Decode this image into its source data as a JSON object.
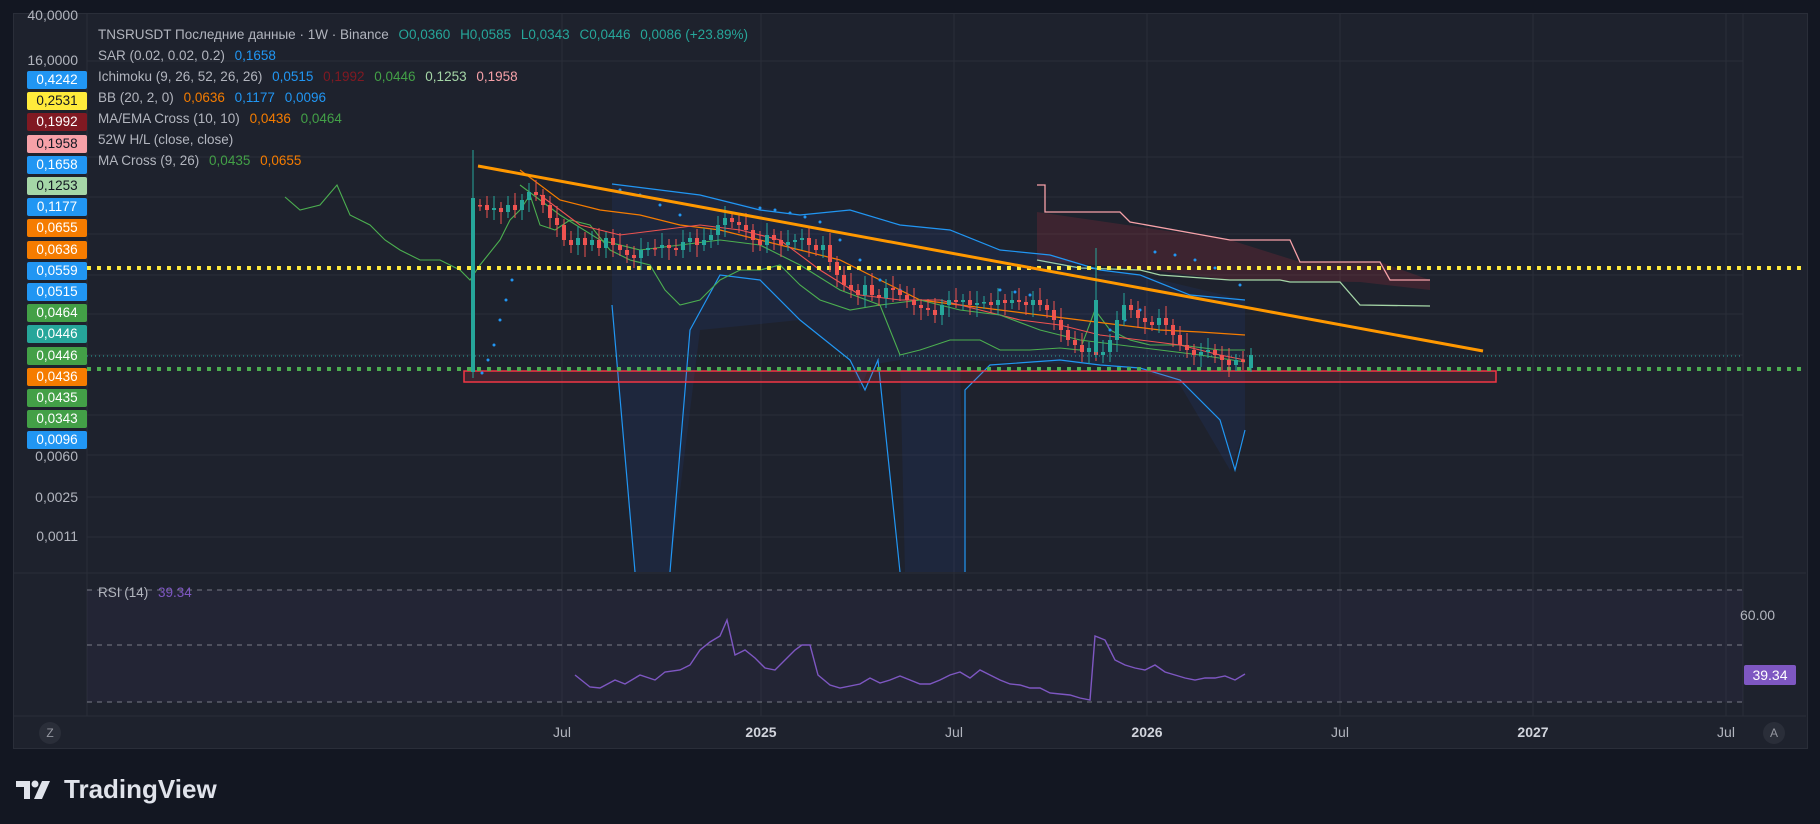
{
  "legend": {
    "main": {
      "symbol": "TNSRUSDT Последние данные · 1W · Binance",
      "o": "O0,0360",
      "h": "H0,0585",
      "l": "L0,0343",
      "c": "C0,0446",
      "chg": "0,0086 (+23.89%)"
    },
    "sar": {
      "name": "SAR (0.02, 0.02, 0.2)",
      "v1": "0,1658"
    },
    "ichimoku": {
      "name": "Ichimoku (9, 26, 52, 26, 26)",
      "v1": "0,0515",
      "v2": "0,1992",
      "v3": "0,0446",
      "v4": "0,1253",
      "v5": "0,1958"
    },
    "bb": {
      "name": "BB (20, 2, 0)",
      "v1": "0,0636",
      "v2": "0,1177",
      "v3": "0,0096"
    },
    "ma_ema": {
      "name": "MA/EMA Cross (10, 10)",
      "v1": "0,0436",
      "v2": "0,0464"
    },
    "hl52": {
      "name": "52W H/L (close, close)"
    },
    "ma_cross": {
      "name": "MA Cross (9, 26)",
      "v1": "0,0435",
      "v2": "0,0655"
    }
  },
  "price_axis": [
    "40,0000",
    "16,0000",
    "0,0060",
    "0,0025",
    "0,0011"
  ],
  "price_tags": [
    {
      "value": "0,4242",
      "color": "#2196f3",
      "text_color": "#ffffff"
    },
    {
      "value": "0,2531",
      "color": "#ffeb3b",
      "text_color": "#131722"
    },
    {
      "value": "0,1992",
      "color": "#801922",
      "text_color": "#ffffff"
    },
    {
      "value": "0,1958",
      "color": "#f7a1a8",
      "text_color": "#131722"
    },
    {
      "value": "0,1658",
      "color": "#2196f3",
      "text_color": "#ffffff"
    },
    {
      "value": "0,1253",
      "color": "#a5d6a7",
      "text_color": "#131722"
    },
    {
      "value": "0,1177",
      "color": "#2196f3",
      "text_color": "#ffffff"
    },
    {
      "value": "0,0655",
      "color": "#f57c00",
      "text_color": "#ffffff"
    },
    {
      "value": "0,0636",
      "color": "#f57c00",
      "text_color": "#ffffff"
    },
    {
      "value": "0,0559",
      "color": "#2196f3",
      "text_color": "#ffffff"
    },
    {
      "value": "0,0515",
      "color": "#2196f3",
      "text_color": "#ffffff"
    },
    {
      "value": "0,0464",
      "color": "#43a047",
      "text_color": "#ffffff"
    },
    {
      "value": "0,0446",
      "color": "#26a69a",
      "text_color": "#ffffff"
    },
    {
      "value": "0,0446",
      "color": "#43a047",
      "text_color": "#ffffff"
    },
    {
      "value": "0,0436",
      "color": "#f57c00",
      "text_color": "#ffffff"
    },
    {
      "value": "0,0435",
      "color": "#43a047",
      "text_color": "#ffffff"
    },
    {
      "value": "0,0343",
      "color": "#43a047",
      "text_color": "#ffffff"
    },
    {
      "value": "0,0096",
      "color": "#2196f3",
      "text_color": "#ffffff"
    }
  ],
  "time_axis": [
    {
      "label": "Jul",
      "year": false
    },
    {
      "label": "2025",
      "year": true
    },
    {
      "label": "Jul",
      "year": false
    },
    {
      "label": "2026",
      "year": true
    },
    {
      "label": "Jul",
      "year": false
    },
    {
      "label": "2027",
      "year": true
    },
    {
      "label": "Jul",
      "year": false
    }
  ],
  "rsi": {
    "name": "RSI (14)",
    "value": "39.34",
    "axis": "60.00"
  },
  "buttons": {
    "zoom": "Z",
    "auto": "A"
  },
  "brand": "TradingView",
  "colors": {
    "up": "#26a69a",
    "down": "#ef5350",
    "trend": "#ff9800",
    "sar": "#2196f3",
    "rsi": "#7e57c2",
    "yellow_level": "#ffeb3b",
    "green_level": "#4caf50"
  }
}
